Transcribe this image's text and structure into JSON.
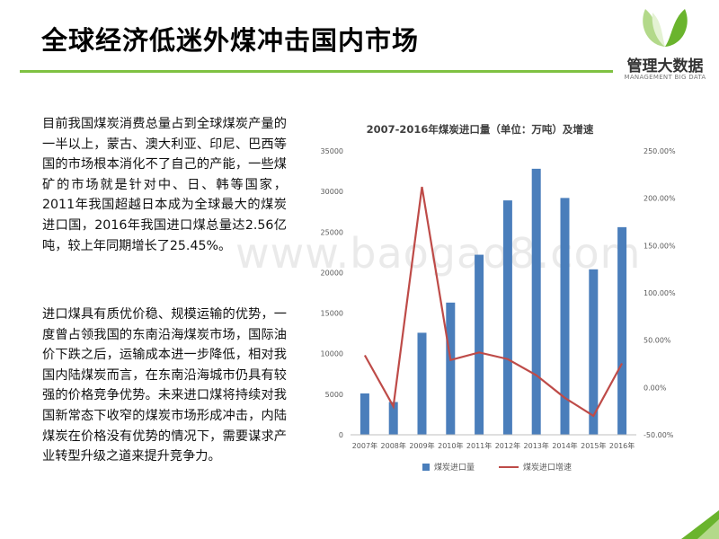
{
  "header": {
    "title": "全球经济低迷外煤冲击国内市场"
  },
  "logo": {
    "name_cn": "管理大数据",
    "name_en": "MANAGEMENT BIG DATA",
    "color_primary": "#6ab42d",
    "color_secondary": "#b3d98a"
  },
  "body": {
    "paragraph1": "目前我国煤炭消费总量占到全球煤炭产量的一半以上，蒙古、澳大利亚、印尼、巴西等国的市场根本消化不了自己的产能，一些煤矿的市场就是针对中、日、韩等国家， 2011年我国超越日本成为全球最大的煤炭进口国，2016年我国进口煤总量达2.56亿吨，较上年同期增长了25.45%。",
    "paragraph2": "进口煤具有质优价稳、规模运输的优势，一度曾占领我国的东南沿海煤炭市场，国际油价下跌之后，运输成本进一步降低，相对我国内陆煤炭而言，在东南沿海城市仍具有较强的价格竞争优势。未来进口煤将持续对我国新常态下收窄的煤炭市场形成冲击，内陆煤炭在价格没有优势的情况下，需要谋求产业转型升级之道来提升竞争力。"
  },
  "watermark": "www.baogao8.com",
  "chart_data": {
    "type": "bar",
    "title": "2007-2016年煤炭进口量（单位：万吨）及增速",
    "categories": [
      "2007年",
      "2008年",
      "2009年",
      "2010年",
      "2011年",
      "2012年",
      "2013年",
      "2014年",
      "2015年",
      "2016年"
    ],
    "series": [
      {
        "name": "煤炭进口量",
        "type": "bar",
        "axis": "left",
        "color": "#4a7ebb",
        "values": [
          5100,
          4040,
          12580,
          16300,
          22200,
          28900,
          32800,
          29200,
          20400,
          25600
        ]
      },
      {
        "name": "煤炭进口增速",
        "type": "line",
        "axis": "right",
        "color": "#be4b48",
        "values": [
          34.0,
          -20.0,
          212.0,
          29.0,
          37.0,
          30.0,
          13.0,
          -11.0,
          -30.0,
          25.5
        ]
      }
    ],
    "y_left": {
      "min": 0,
      "max": 35000,
      "step": 5000,
      "ticks": [
        "0",
        "5000",
        "10000",
        "15000",
        "20000",
        "25000",
        "30000",
        "35000"
      ]
    },
    "y_right": {
      "min": -50,
      "max": 250,
      "step": 50,
      "ticks": [
        "-50.00%",
        "0.00%",
        "50.00%",
        "100.00%",
        "150.00%",
        "200.00%",
        "250.00%"
      ]
    },
    "legend_position": "bottom",
    "grid": false
  }
}
